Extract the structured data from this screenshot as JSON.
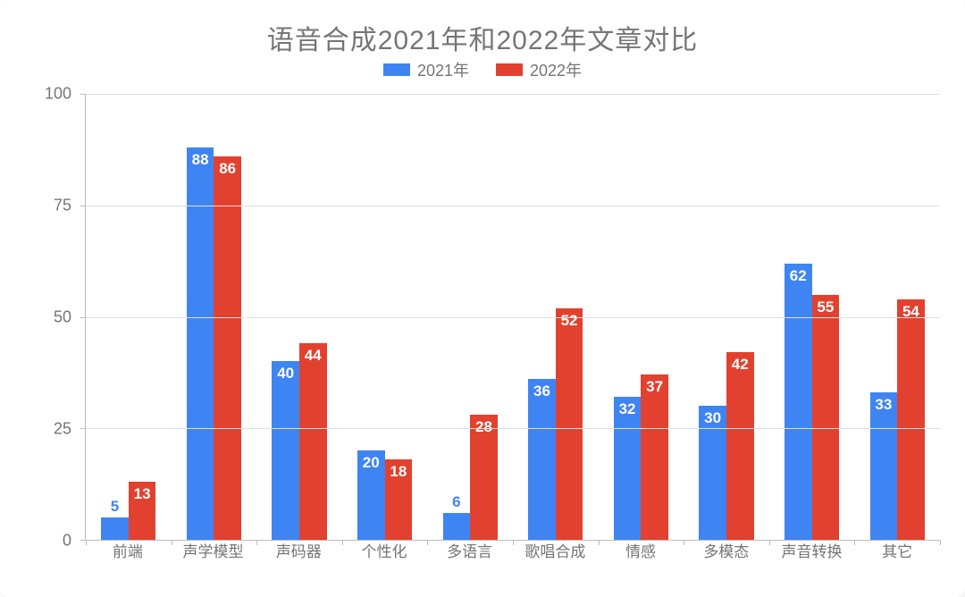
{
  "chart": {
    "type": "bar",
    "title": "语音合成2021年和2022年文章对比",
    "title_color": "#757575",
    "title_fontsize": 30,
    "background_color": "#ffffff",
    "grid_color": "#e0e0e0",
    "axis_color": "#bdbdbd",
    "text_color": "#757575",
    "label_fontsize": 18,
    "xlabel_fontsize": 17,
    "value_label_fontsize": 17,
    "ylim": [
      0,
      100
    ],
    "ytick_step": 25,
    "yticks": [
      0,
      25,
      50,
      75,
      100
    ],
    "bar_width_ratio": 0.32,
    "categories": [
      "前端",
      "声学模型",
      "声码器",
      "个性化",
      "多语言",
      "歌唱合成",
      "情感",
      "多模态",
      "声音转换",
      "其它"
    ],
    "series": [
      {
        "name": "2021年",
        "color": "#3f84f3",
        "values": [
          5,
          88,
          40,
          20,
          6,
          36,
          32,
          30,
          62,
          33
        ]
      },
      {
        "name": "2022年",
        "color": "#e2412f",
        "values": [
          13,
          86,
          44,
          18,
          28,
          52,
          37,
          42,
          55,
          54
        ]
      }
    ],
    "label_color_in_bar": "#ffffff",
    "legend": {
      "position": "top",
      "items": [
        {
          "label": "2021年",
          "color": "#3f84f3"
        },
        {
          "label": "2022年",
          "color": "#e2412f"
        }
      ]
    }
  }
}
